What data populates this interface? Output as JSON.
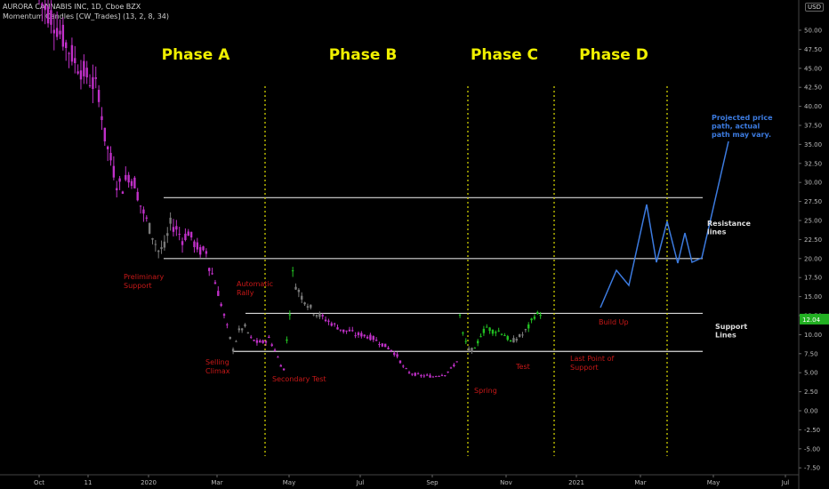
{
  "header": {
    "symbol_line": "AURORA CANNABIS INC, 1D, Cboe BZX",
    "indicator_line": "Momentum Candles [CW_Trades] (13, 2, 8, 34)"
  },
  "currency": "USD",
  "colors": {
    "background": "#000000",
    "candle_magenta": "#c030c8",
    "candle_grey": "#7a7a7a",
    "candle_green": "#22c022",
    "phase_label": "#f0f000",
    "annotation_red": "#c81818",
    "projection_blue": "#3c7be0",
    "level_line": "#d8d8d8",
    "divider": "#e0e000",
    "last_price_bg": "#22b022"
  },
  "chart_data": {
    "type": "candlestick",
    "title": "AURORA CANNABIS INC, 1D, Cboe BZX",
    "y_axis": {
      "range": [
        -8.5,
        55
      ],
      "ticks": [
        "-7.50",
        "-5.00",
        "-2.50",
        "0.00",
        "2.50",
        "5.00",
        "7.50",
        "10.00",
        "12.50",
        "15.00",
        "17.50",
        "20.00",
        "22.50",
        "25.00",
        "27.50",
        "30.00",
        "32.50",
        "35.00",
        "37.50",
        "40.00",
        "42.50",
        "45.00",
        "47.50",
        "50.00"
      ],
      "last_price": "12.04"
    },
    "x_axis": {
      "ticks": [
        "Oct",
        "11",
        "2020",
        "Mar",
        "May",
        "Jul",
        "Sep",
        "Nov",
        "2021",
        "Mar",
        "May",
        "Jul"
      ]
    },
    "price_path": [
      [
        0,
        54
      ],
      [
        4,
        52
      ],
      [
        8,
        49
      ],
      [
        12,
        46
      ],
      [
        16,
        44
      ],
      [
        20,
        42
      ],
      [
        22,
        36
      ],
      [
        24,
        33
      ],
      [
        26,
        30
      ],
      [
        28,
        29.5
      ],
      [
        30,
        31
      ],
      [
        32,
        30
      ],
      [
        34,
        27
      ],
      [
        36,
        25
      ],
      [
        38,
        23
      ],
      [
        40,
        21
      ],
      [
        42,
        21.5
      ],
      [
        44,
        24.5
      ],
      [
        46,
        24
      ],
      [
        48,
        22.5
      ],
      [
        50,
        23.5
      ],
      [
        52,
        22
      ],
      [
        54,
        21
      ],
      [
        56,
        21
      ],
      [
        57,
        19
      ],
      [
        59,
        17
      ],
      [
        61,
        14
      ],
      [
        63,
        11
      ],
      [
        65,
        8
      ],
      [
        67,
        10.5
      ],
      [
        69,
        11
      ],
      [
        71,
        9.5
      ],
      [
        73,
        9
      ],
      [
        75,
        9
      ],
      [
        77,
        9.5
      ],
      [
        79,
        8
      ],
      [
        81,
        6
      ],
      [
        82,
        5.5
      ],
      [
        84,
        13
      ],
      [
        85,
        18
      ],
      [
        86,
        16.5
      ],
      [
        88,
        15
      ],
      [
        90,
        14
      ],
      [
        92,
        13
      ],
      [
        94,
        12.5
      ],
      [
        96,
        12
      ],
      [
        98,
        11.5
      ],
      [
        100,
        11
      ],
      [
        102,
        10.5
      ],
      [
        104,
        10.5
      ],
      [
        106,
        10
      ],
      [
        108,
        10
      ],
      [
        110,
        9.8
      ],
      [
        112,
        9.5
      ],
      [
        114,
        9
      ],
      [
        116,
        8.5
      ],
      [
        118,
        8
      ],
      [
        120,
        7.2
      ],
      [
        122,
        5.8
      ],
      [
        124,
        5
      ],
      [
        126,
        4.8
      ],
      [
        128,
        4.6
      ],
      [
        130,
        4.6
      ],
      [
        132,
        4.5
      ],
      [
        134,
        4.7
      ],
      [
        136,
        4.8
      ],
      [
        138,
        5.5
      ],
      [
        140,
        6.5
      ],
      [
        141,
        12.5
      ],
      [
        142,
        10
      ],
      [
        144,
        8
      ],
      [
        146,
        8
      ],
      [
        148,
        10
      ],
      [
        150,
        11
      ],
      [
        152,
        10.5
      ],
      [
        154,
        10.5
      ],
      [
        156,
        10
      ],
      [
        158,
        9
      ],
      [
        160,
        9.5
      ],
      [
        162,
        10
      ],
      [
        164,
        11
      ],
      [
        166,
        12.5
      ],
      [
        168,
        12.8
      ]
    ],
    "candle_colors": [
      [
        0,
        "magenta"
      ],
      [
        37,
        "grey"
      ],
      [
        45,
        "magenta"
      ],
      [
        64,
        "grey"
      ],
      [
        71,
        "magenta"
      ],
      [
        83,
        "green"
      ],
      [
        86,
        "grey"
      ],
      [
        95,
        "magenta"
      ],
      [
        141,
        "green"
      ],
      [
        144,
        "grey"
      ],
      [
        146,
        "green"
      ],
      [
        159,
        "grey"
      ],
      [
        164,
        "green"
      ]
    ],
    "projection": [
      [
        13.8,
        23.2
      ],
      [
        17.8,
        18.5
      ],
      [
        16.2,
        20.6
      ],
      [
        20.4,
        24.4
      ],
      [
        27.2,
        27.2
      ],
      [
        19.5,
        29.4
      ],
      [
        24.7,
        30.9
      ],
      [
        19.8,
        32.6
      ],
      [
        23.3,
        33.4
      ],
      [
        19.5,
        34.5
      ],
      [
        35.3,
        38.2
      ]
    ],
    "horizontal_levels": [
      28,
      20,
      12.8,
      7.8
    ],
    "phase_labels": [
      "Phase A",
      "Phase B",
      "Phase C",
      "Phase D"
    ],
    "annotations": [
      {
        "lines": [
          "Preliminary",
          "Support"
        ]
      },
      {
        "lines": [
          "Automatic",
          "Rally"
        ]
      },
      {
        "lines": [
          "Selling",
          "Climax"
        ]
      },
      {
        "lines": [
          "Secondary Test"
        ]
      },
      {
        "lines": [
          "Spring"
        ]
      },
      {
        "lines": [
          "Test"
        ]
      },
      {
        "lines": [
          "Build Up"
        ]
      },
      {
        "lines": [
          "Last Point of",
          "Support"
        ]
      }
    ],
    "side_labels": [
      {
        "lines": [
          "Projected price",
          "path, actual",
          "path may vary."
        ]
      },
      {
        "lines": [
          "Resistance",
          "lines"
        ]
      },
      {
        "lines": [
          "Support",
          "Lines"
        ]
      }
    ]
  }
}
